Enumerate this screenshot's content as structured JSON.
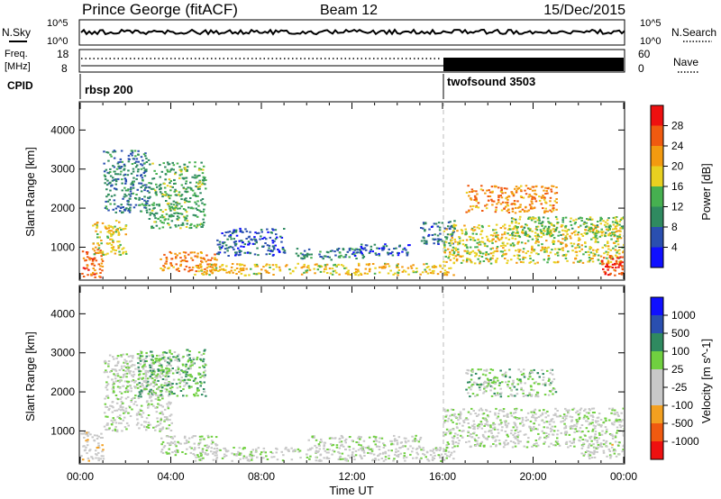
{
  "header": {
    "station": "Prince George (fitACF)",
    "beam": "Beam 12",
    "date": "15/Dec/2015"
  },
  "aux": {
    "nsky_label": "N.Sky",
    "nsearch_label": "N.Search",
    "freq_label": "Freq.",
    "freq_unit": "[MHz]",
    "nave_label": "Nave",
    "cpid_label": "CPID",
    "noise_left_ticks": [
      "10^5",
      "10^0"
    ],
    "noise_right_ticks": [
      "10^5",
      "10^0"
    ],
    "freq_ticks": [
      "18",
      "8"
    ],
    "nave_ticks": [
      "60",
      "0"
    ],
    "cpid_segments": [
      {
        "label": "rbsp 200",
        "start_h": 0,
        "end_h": 16
      },
      {
        "label": "twofsound 3503",
        "start_h": 16,
        "end_h": 24
      }
    ]
  },
  "colors": {
    "power_scale": [
      "#1010ff",
      "#2a4fb0",
      "#2f8a60",
      "#46b050",
      "#e8d020",
      "#f39a10",
      "#f05a10",
      "#ee1010"
    ],
    "velocity_scale": [
      "#ee1010",
      "#f05a10",
      "#f3a020",
      "#c8c8c8",
      "#c8c8c8",
      "#70d040",
      "#2f8a60",
      "#2a4fb0",
      "#1010ff"
    ]
  },
  "chart_data": [
    {
      "type": "heatmap",
      "name": "power",
      "ylabel": "Slant Range [km]",
      "xlabel": "Time UT",
      "xlim": [
        0,
        24
      ],
      "ylim": [
        180,
        4700
      ],
      "x_ticks": [
        "00:00",
        "04:00",
        "08:00",
        "12:00",
        "16:00",
        "20:00",
        "00:00"
      ],
      "y_ticks": [
        1000,
        2000,
        3000,
        4000
      ],
      "colorbar": {
        "label": "Power [dB]",
        "ticks": [
          "4",
          "8",
          "12",
          "16",
          "20",
          "24",
          "28"
        ],
        "range": [
          0,
          30
        ]
      },
      "regions": [
        {
          "t": [
            0.0,
            1.0
          ],
          "r": [
            250,
            1000
          ],
          "v": 24
        },
        {
          "t": [
            0.5,
            2.0
          ],
          "r": [
            800,
            1700
          ],
          "v": 17
        },
        {
          "t": [
            1.0,
            3.0
          ],
          "r": [
            1900,
            3500
          ],
          "v": 8
        },
        {
          "t": [
            3.0,
            5.5
          ],
          "r": [
            1500,
            3200
          ],
          "v": 12
        },
        {
          "t": [
            3.5,
            6.0
          ],
          "r": [
            400,
            900
          ],
          "v": 22
        },
        {
          "t": [
            5.0,
            16.5
          ],
          "r": [
            300,
            600
          ],
          "v": 18
        },
        {
          "t": [
            6.0,
            9.0
          ],
          "r": [
            800,
            1500
          ],
          "v": 6
        },
        {
          "t": [
            9.5,
            12.5
          ],
          "r": [
            700,
            1000
          ],
          "v": 9
        },
        {
          "t": [
            12.0,
            14.5
          ],
          "r": [
            800,
            1100
          ],
          "v": 6
        },
        {
          "t": [
            15.0,
            16.5
          ],
          "r": [
            1100,
            1700
          ],
          "v": 7
        },
        {
          "t": [
            16.0,
            24.0
          ],
          "r": [
            600,
            1600
          ],
          "v": 17
        },
        {
          "t": [
            17.0,
            21.0
          ],
          "r": [
            1900,
            2600
          ],
          "v": 22
        },
        {
          "t": [
            19.0,
            24.0
          ],
          "r": [
            1300,
            1800
          ],
          "v": 14
        },
        {
          "t": [
            23.0,
            24.0
          ],
          "r": [
            300,
            800
          ],
          "v": 26
        }
      ]
    },
    {
      "type": "heatmap",
      "name": "velocity",
      "ylabel": "Slant Range [km]",
      "xlabel": "Time UT",
      "xlim": [
        0,
        24
      ],
      "ylim": [
        180,
        4700
      ],
      "x_ticks": [
        "00:00",
        "04:00",
        "08:00",
        "12:00",
        "16:00",
        "20:00",
        "00:00"
      ],
      "y_ticks": [
        1000,
        2000,
        3000,
        4000
      ],
      "colorbar": {
        "label": "Velocity [m s^-1]",
        "ticks": [
          "-1000",
          "-500",
          "-100",
          "-25",
          "25",
          "100",
          "500",
          "1000"
        ],
        "range": [
          -1200,
          1200
        ]
      },
      "regions": [
        {
          "t": [
            0.0,
            1.0
          ],
          "r": [
            250,
            1000
          ],
          "v": -200
        },
        {
          "t": [
            1.0,
            4.0
          ],
          "r": [
            1000,
            3000
          ],
          "v": 0
        },
        {
          "t": [
            2.5,
            5.5
          ],
          "r": [
            1900,
            3100
          ],
          "v": 300
        },
        {
          "t": [
            3.5,
            6.0
          ],
          "r": [
            400,
            900
          ],
          "v": 0
        },
        {
          "t": [
            5.0,
            16.5
          ],
          "r": [
            250,
            600
          ],
          "v": -60
        },
        {
          "t": [
            10.0,
            15.0
          ],
          "r": [
            600,
            900
          ],
          "v": 0
        },
        {
          "t": [
            16.0,
            24.0
          ],
          "r": [
            600,
            1600
          ],
          "v": 0
        },
        {
          "t": [
            17.0,
            21.0
          ],
          "r": [
            1900,
            2600
          ],
          "v": 150
        },
        {
          "t": [
            22.0,
            24.0
          ],
          "r": [
            300,
            700
          ],
          "v": -70
        }
      ]
    }
  ]
}
